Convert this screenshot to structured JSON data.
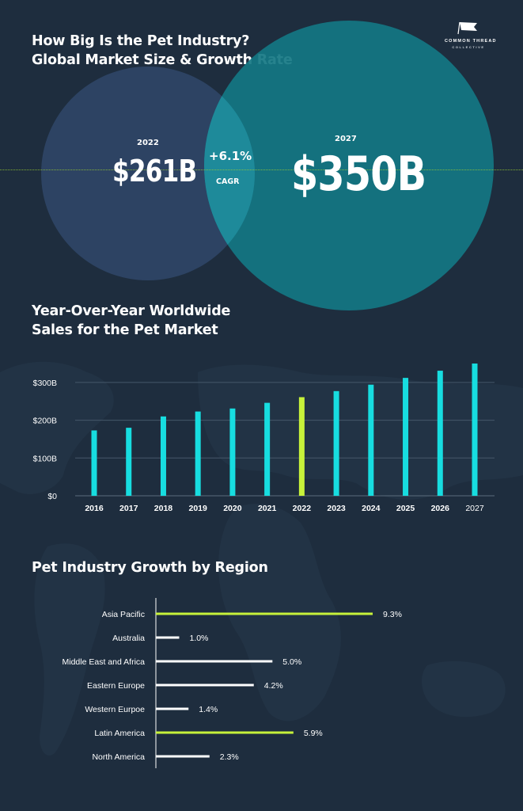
{
  "header": {
    "title_line1": "How Big Is the Pet Industry?",
    "title_line2": "Global Market Size & Growth Rate",
    "logo_line1": "COMMON THREAD",
    "logo_line2": "COLLECTIVE"
  },
  "market_size": {
    "left": {
      "year": "2022",
      "value": "$261B"
    },
    "right": {
      "year": "2027",
      "value": "$350B"
    },
    "cagr_value": "+6.1%",
    "cagr_label": "CAGR"
  },
  "yoy_section": {
    "title_line1": "Year-Over-Year Worldwide",
    "title_line2": "Sales for the Pet Market"
  },
  "region_section": {
    "title": "Pet Industry Growth by Region"
  },
  "colors": {
    "background": "#1e2d3e",
    "bar_cyan": "#17dde0",
    "bar_highlight": "#c7f23a",
    "circle_left": "#2f4566",
    "circle_right": "#137783",
    "region_bar_white": "#ffffff"
  },
  "chart_data": [
    {
      "type": "bar",
      "categories": [
        "2016",
        "2017",
        "2018",
        "2019",
        "2020",
        "2021",
        "2022",
        "2023",
        "2024",
        "2025",
        "2026",
        "2027"
      ],
      "values": [
        173,
        180,
        210,
        223,
        231,
        246,
        261,
        277,
        294,
        312,
        331,
        350
      ],
      "highlight_category": "2022",
      "ylim": [
        0,
        350
      ],
      "yticks": [
        0,
        100,
        200,
        300
      ],
      "ytick_labels": [
        "$0",
        "$100B",
        "$200B",
        "$300B"
      ],
      "grid": true
    },
    {
      "type": "bar",
      "orientation": "horizontal",
      "categories": [
        "Asia Pacific",
        "Australia",
        "Middle East and Africa",
        "Eastern Europe",
        "Western Eurpoe",
        "Latin America",
        "North America"
      ],
      "values": [
        9.3,
        1.0,
        5.0,
        4.2,
        1.4,
        5.9,
        2.3
      ],
      "value_labels": [
        "9.3%",
        "1.0%",
        "5.0%",
        "4.2%",
        "1.4%",
        "5.9%",
        "2.3%"
      ],
      "highlighted": [
        "Asia Pacific",
        "Latin America"
      ],
      "grid": false
    }
  ]
}
